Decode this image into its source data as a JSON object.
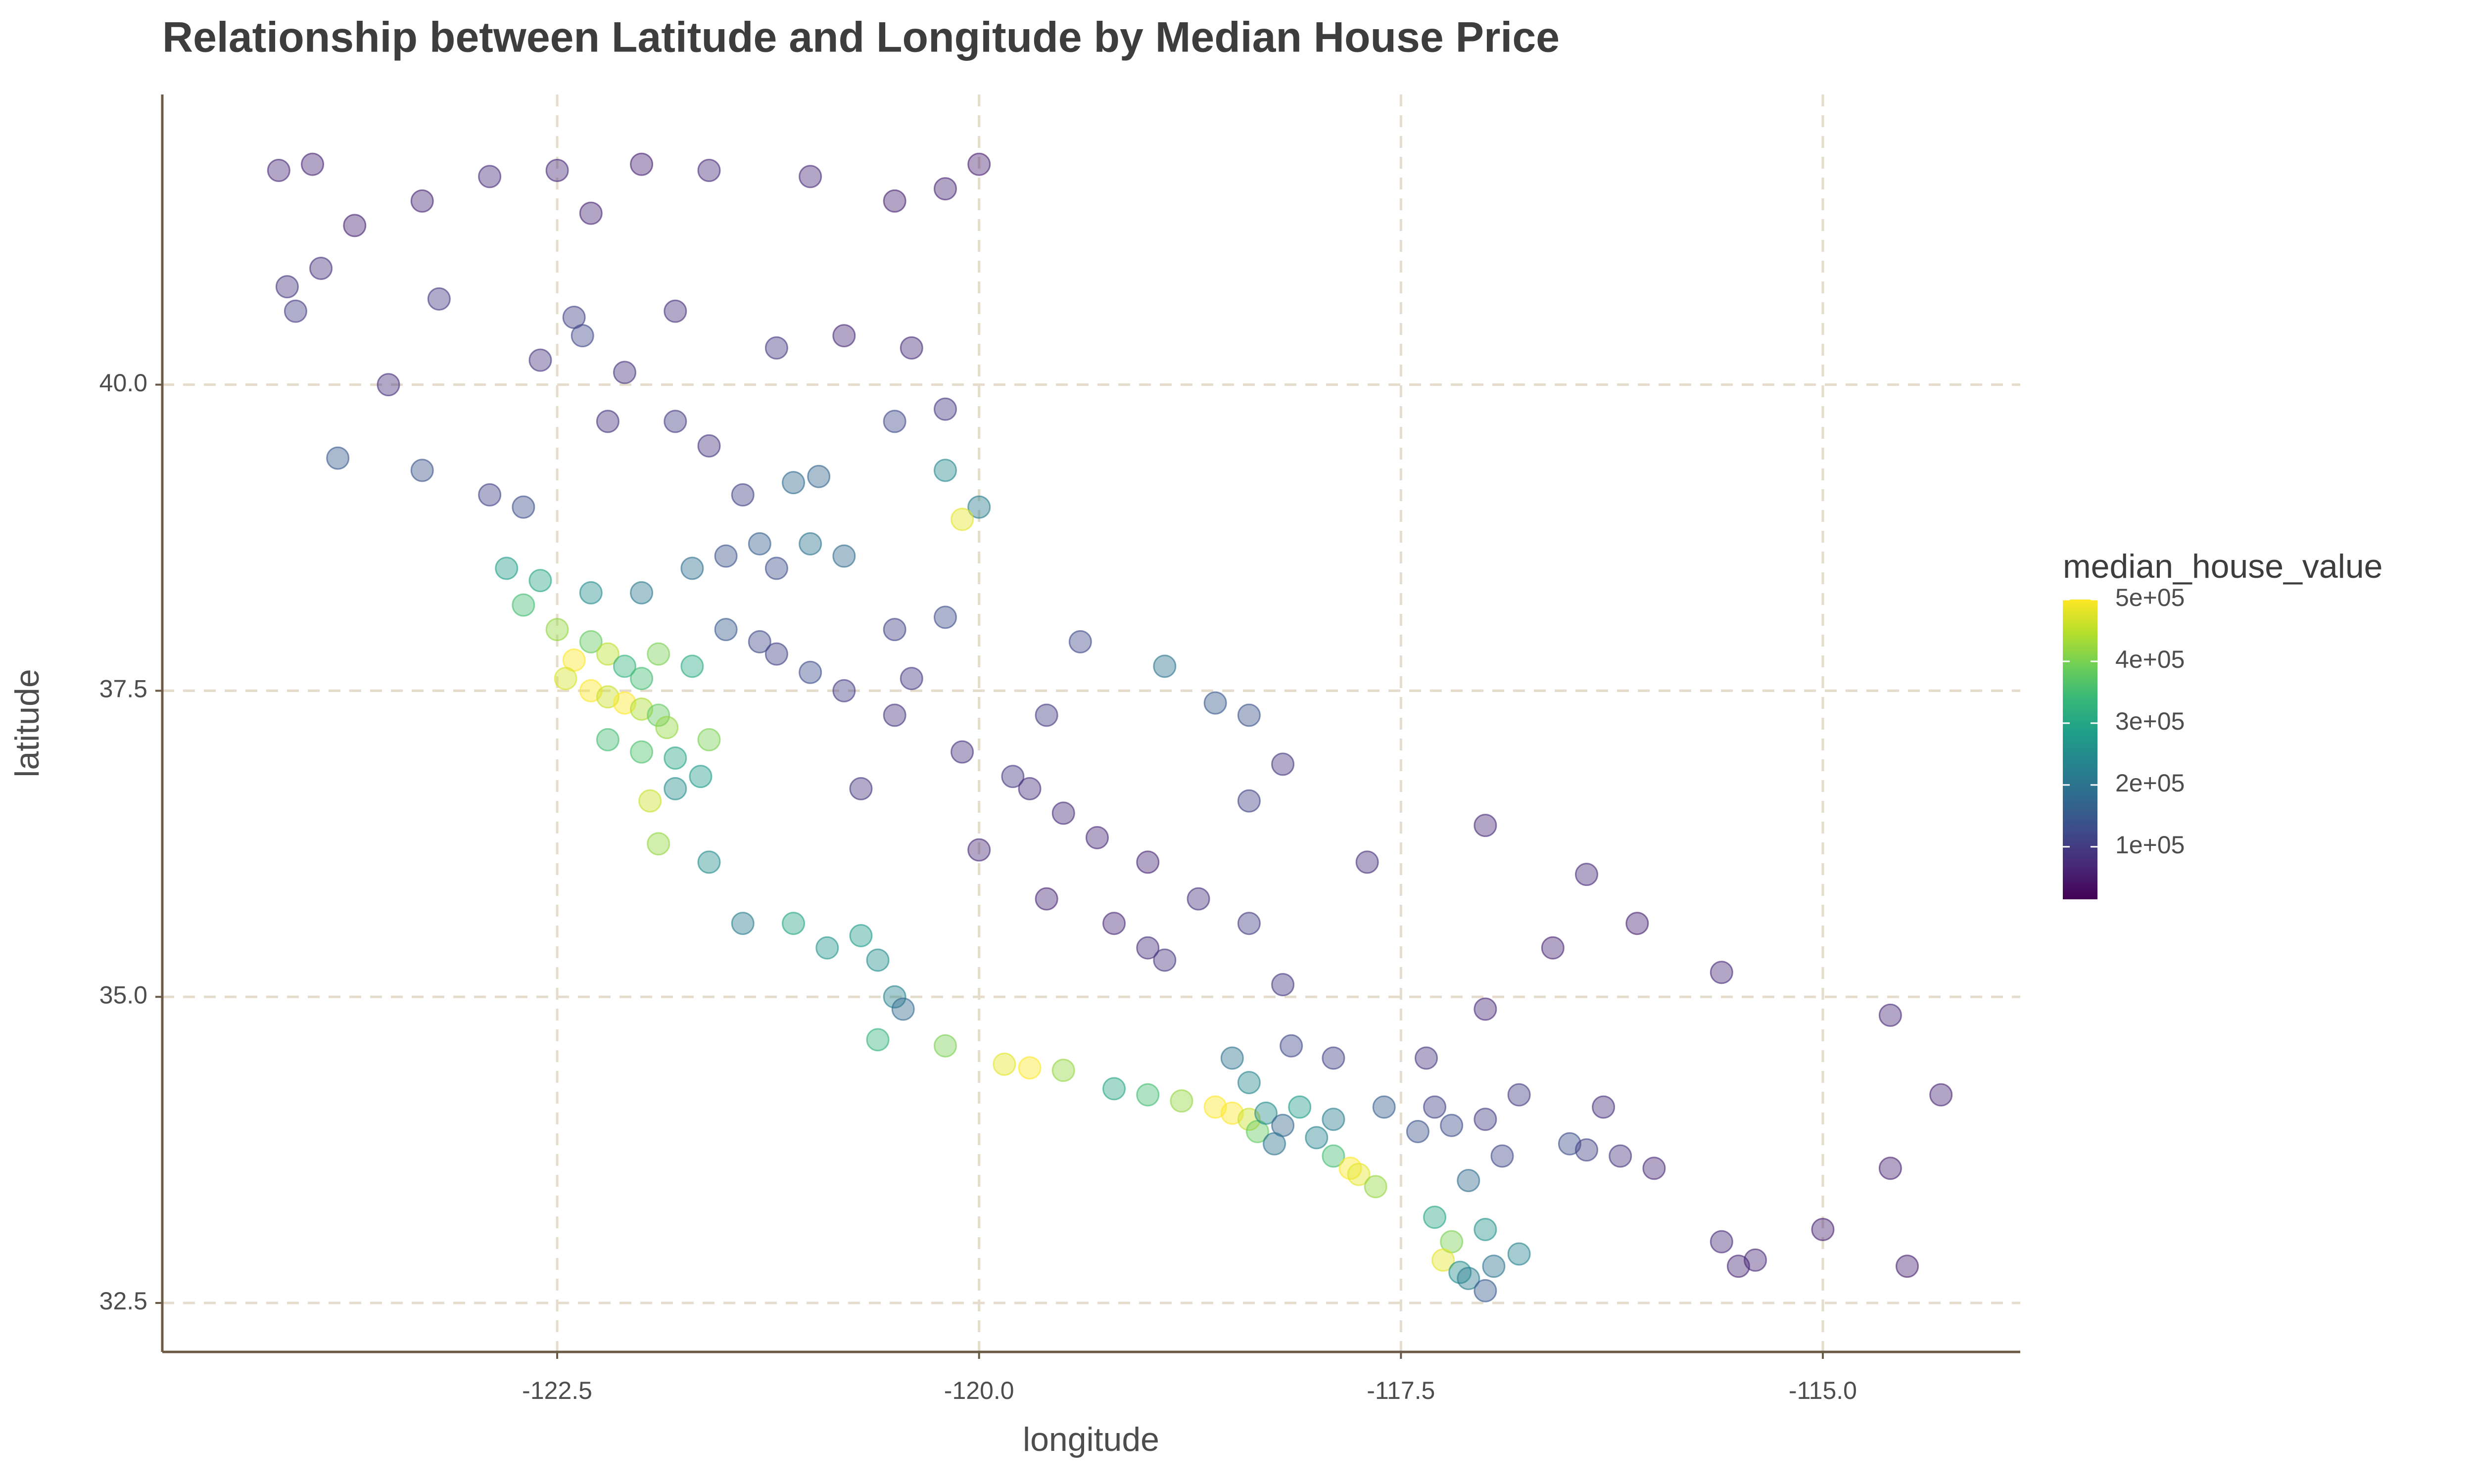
{
  "chart_data": {
    "type": "scatter",
    "title": "Relationship between Latitude and Longitude by Median House Price",
    "x_label": "longitude",
    "y_label": "latitude",
    "legend_title": "median_house_value",
    "xlim": [
      -124.84,
      -113.83
    ],
    "ylim": [
      32.1,
      42.37
    ],
    "xticks": [
      -122.5,
      {
        "value": -120,
        "label": "-120.0"
      },
      -117.5,
      {
        "value": -115,
        "label": "-115.0"
      }
    ],
    "yticks": [
      32.5,
      {
        "value": 35,
        "label": "35.0"
      },
      37.5,
      {
        "value": 40,
        "label": "40.0"
      }
    ],
    "grid": true,
    "colormap": [
      "#440154",
      "#482878",
      "#3e4989",
      "#31688e",
      "#26828e",
      "#1f9e89",
      "#35b779",
      "#6ece58",
      "#b5de2b",
      "#fde725"
    ],
    "clim": [
      14999,
      500001
    ],
    "cticks": [
      {
        "value": 100000,
        "label": "1e+05"
      },
      {
        "value": 200000,
        "label": "2e+05"
      },
      {
        "value": 300000,
        "label": "3e+05"
      },
      {
        "value": 400000,
        "label": "4e+05"
      },
      {
        "value": 500000,
        "label": "5e+05"
      }
    ],
    "x": [
      -124.15,
      -123.95,
      -124.1,
      -123.9,
      -124.05,
      -123.7,
      -123.3,
      -122.9,
      -122.5,
      -122.3,
      -122.0,
      -121.6,
      -121.0,
      -120.5,
      -120.2,
      -123.2,
      -122.4,
      -122.35,
      -122.6,
      -122.1,
      -121.8,
      -121.2,
      -120.8,
      -120.4,
      -123.5,
      -123.8,
      -123.3,
      -122.9,
      -122.7,
      -122.2,
      -121.8,
      -121.6,
      -121.1,
      -120.95,
      -120.2,
      -120.0,
      -120.1,
      -120.5,
      -121.4,
      -121.5,
      -121.3,
      -121.2,
      -121.0,
      -120.8,
      -121.7,
      -122.0,
      -122.3,
      -122.6,
      -122.8,
      -122.7,
      -122.5,
      -122.3,
      -122.2,
      -122.4,
      -122.45,
      -122.3,
      -122.2,
      -122.1,
      -122.0,
      -121.9,
      -121.85,
      -122.0,
      -121.8,
      -121.95,
      -121.8,
      -121.65,
      -122.1,
      -121.9,
      -121.7,
      -122.0,
      -121.9,
      -121.3,
      -121.2,
      -121.0,
      -120.8,
      -120.5,
      -120.1,
      -119.8,
      -119.7,
      -119.5,
      -119.3,
      -119.0,
      -119.2,
      -119.0,
      -118.9,
      -120.5,
      -120.2,
      -120.4,
      -119.6,
      -119.4,
      -118.6,
      -118.4,
      -120.7,
      -120.0,
      -119.6,
      -118.7,
      -118.4,
      -118.2,
      -121.4,
      -120.7,
      -120.6,
      -120.5,
      -120.45,
      -120.2,
      -119.85,
      -119.7,
      -119.5,
      -119.2,
      -119.0,
      -118.8,
      -118.6,
      -118.5,
      -118.4,
      -118.35,
      -118.3,
      -118.2,
      -118.1,
      -118.0,
      -117.9,
      -117.8,
      -117.75,
      -117.65,
      -117.9,
      -118.25,
      -118.4,
      -118.5,
      -118.15,
      -117.9,
      -117.6,
      -117.3,
      -117.2,
      -117.4,
      -117.0,
      -116.9,
      -117.1,
      -117.3,
      -117.2,
      -117.25,
      -117.15,
      -117.1,
      -117.0,
      -116.95,
      -116.8,
      -117.0,
      -117.35,
      -117.0,
      -116.8,
      -116.5,
      -116.4,
      -116.3,
      -116.2,
      -116.0,
      -115.6,
      -115.5,
      -115.4,
      -114.6,
      -114.6,
      -114.5,
      -114.3,
      -115.0,
      -116.1,
      -115.6,
      -116.6,
      -116.4,
      -117.0,
      -117.7,
      -118.4,
      -118.2,
      -120.2,
      -120.0,
      -118.9,
      -121.6,
      -121.1,
      -120.9,
      -122.2,
      -121.6,
      -121.5,
      -120.6
    ],
    "y": [
      41.75,
      41.8,
      40.8,
      40.95,
      40.6,
      41.3,
      41.5,
      41.7,
      41.75,
      41.4,
      41.8,
      41.75,
      41.7,
      41.5,
      41.6,
      40.7,
      40.55,
      40.4,
      40.2,
      40.1,
      40.6,
      40.3,
      40.4,
      40.3,
      40.0,
      39.4,
      39.3,
      39.1,
      39.0,
      39.7,
      39.7,
      39.5,
      39.2,
      39.25,
      39.3,
      39.0,
      38.9,
      39.7,
      39.1,
      38.6,
      38.7,
      38.5,
      38.7,
      38.6,
      38.5,
      38.3,
      38.3,
      38.4,
      38.5,
      38.2,
      38.0,
      37.9,
      37.8,
      37.75,
      37.6,
      37.5,
      37.45,
      37.4,
      37.35,
      37.3,
      37.2,
      37.0,
      36.95,
      36.6,
      36.7,
      36.8,
      37.7,
      37.8,
      37.7,
      37.6,
      36.25,
      37.9,
      37.8,
      37.65,
      37.5,
      37.3,
      37.0,
      36.8,
      36.7,
      36.5,
      36.3,
      36.1,
      35.6,
      35.4,
      35.3,
      38.0,
      38.1,
      37.6,
      37.3,
      37.9,
      37.4,
      37.3,
      36.7,
      36.2,
      35.8,
      35.8,
      35.6,
      35.1,
      35.6,
      35.5,
      35.3,
      35.0,
      34.9,
      34.6,
      34.45,
      34.42,
      34.4,
      34.25,
      34.2,
      34.15,
      34.1,
      34.05,
      34.0,
      33.9,
      34.05,
      33.95,
      34.1,
      33.85,
      33.7,
      33.6,
      33.55,
      33.45,
      34.0,
      33.8,
      34.3,
      34.5,
      34.6,
      34.5,
      34.1,
      34.1,
      33.95,
      33.9,
      34.0,
      33.7,
      33.5,
      33.2,
      33.0,
      32.85,
      32.75,
      32.7,
      32.6,
      32.8,
      32.9,
      33.1,
      34.5,
      34.9,
      34.2,
      33.8,
      33.75,
      34.1,
      33.7,
      33.6,
      33.0,
      32.8,
      32.85,
      34.85,
      33.6,
      32.8,
      34.2,
      33.1,
      35.6,
      35.2,
      35.4,
      36.0,
      36.4,
      36.1,
      36.6,
      36.9,
      39.8,
      41.8,
      37.7,
      36.1,
      35.6,
      35.4,
      37.1,
      37.1,
      38.0,
      34.65
    ],
    "color_values": [
      70000,
      65000,
      90000,
      85000,
      100000,
      60000,
      65000,
      75000,
      70000,
      65000,
      60000,
      75000,
      70000,
      60000,
      65000,
      95000,
      110000,
      120000,
      90000,
      85000,
      80000,
      95000,
      70000,
      75000,
      80000,
      150000,
      140000,
      110000,
      130000,
      85000,
      100000,
      90000,
      180000,
      170000,
      240000,
      220000,
      480000,
      120000,
      110000,
      140000,
      160000,
      130000,
      200000,
      180000,
      190000,
      210000,
      250000,
      300000,
      280000,
      350000,
      420000,
      380000,
      450000,
      500001,
      470000,
      500001,
      460000,
      500001,
      440000,
      380000,
      420000,
      360000,
      300000,
      460000,
      250000,
      280000,
      330000,
      400000,
      310000,
      350000,
      420000,
      120000,
      110000,
      130000,
      100000,
      90000,
      85000,
      95000,
      80000,
      75000,
      70000,
      65000,
      70000,
      80000,
      90000,
      110000,
      130000,
      95000,
      100000,
      120000,
      150000,
      140000,
      90000,
      70000,
      65000,
      85000,
      100000,
      95000,
      220000,
      280000,
      250000,
      230000,
      180000,
      400000,
      480000,
      500001,
      420000,
      300000,
      350000,
      420000,
      500001,
      500001,
      460000,
      380000,
      250000,
      170000,
      280000,
      230000,
      350000,
      500001,
      480000,
      420000,
      220000,
      200000,
      240000,
      200000,
      120000,
      110000,
      160000,
      110000,
      130000,
      140000,
      100000,
      120000,
      180000,
      300000,
      400000,
      480000,
      250000,
      220000,
      150000,
      200000,
      230000,
      260000,
      90000,
      70000,
      100000,
      130000,
      110000,
      80000,
      90000,
      70000,
      75000,
      65000,
      70000,
      70000,
      60000,
      60000,
      65000,
      60000,
      60000,
      70000,
      65000,
      75000,
      70000,
      80000,
      110000,
      90000,
      95000,
      60000,
      200000,
      250000,
      300000,
      270000,
      350000,
      400000,
      150000,
      330000
    ]
  }
}
